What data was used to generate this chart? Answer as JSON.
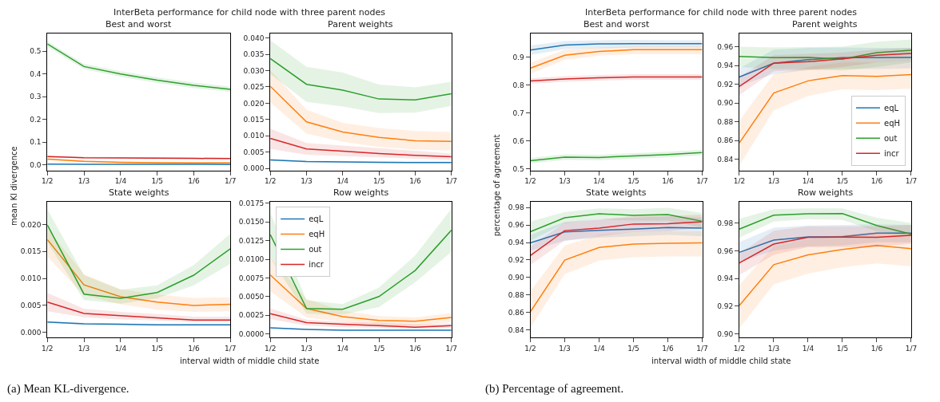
{
  "chart_data": [
    {
      "type": "line",
      "title": "Best and worst",
      "ylabel": "mean Kl divergence",
      "annotations": [
        "InterBeta performance for child node with three parent nodes"
      ],
      "categories": [
        "1/2",
        "1/3",
        "1/4",
        "1/5",
        "1/6",
        "1/7"
      ],
      "ylim": [
        -0.024,
        0.577
      ],
      "yticks": [
        {
          "value": 0,
          "label": "0.0"
        },
        0.1,
        0.2,
        0.3,
        0.4,
        0.5
      ],
      "series": [
        {
          "color": "#1f77b4",
          "values": [
            0.004,
            0.003,
            0.003,
            0.003,
            0.003,
            0.002
          ],
          "lower": [
            0.002,
            0.001,
            0.001,
            0.001,
            0.001,
            0.0
          ],
          "upper": [
            0.006,
            0.005,
            0.005,
            0.005,
            0.005,
            0.004
          ]
        },
        {
          "color": "#ff7f0e",
          "values": [
            0.026,
            0.016,
            0.012,
            0.01,
            0.009,
            0.009
          ],
          "lower": [
            0.022,
            0.012,
            0.008,
            0.006,
            0.005,
            0.005
          ],
          "upper": [
            0.03,
            0.02,
            0.016,
            0.014,
            0.013,
            0.013
          ]
        },
        {
          "color": "#2ca02c",
          "values": [
            0.532,
            0.433,
            0.4,
            0.373,
            0.35,
            0.333
          ],
          "lower": [
            0.52,
            0.421,
            0.388,
            0.361,
            0.338,
            0.321
          ],
          "upper": [
            0.544,
            0.445,
            0.412,
            0.385,
            0.362,
            0.345
          ]
        },
        {
          "color": "#d62728",
          "values": [
            0.037,
            0.032,
            0.031,
            0.03,
            0.029,
            0.028
          ],
          "lower": [
            0.033,
            0.028,
            0.027,
            0.026,
            0.025,
            0.024
          ],
          "upper": [
            0.041,
            0.036,
            0.035,
            0.034,
            0.033,
            0.032
          ]
        }
      ]
    },
    {
      "type": "line",
      "title": "Parent weights",
      "categories": [
        "1/2",
        "1/3",
        "1/4",
        "1/5",
        "1/6",
        "1/7"
      ],
      "ylim": [
        -0.0006,
        0.0413
      ],
      "yticks": [
        {
          "value": 0,
          "label": "0.000"
        },
        0.005,
        {
          "value": 0.01,
          "label": "0.010"
        },
        0.015,
        {
          "value": 0.02,
          "label": "0.020"
        },
        0.025,
        {
          "value": 0.03,
          "label": "0.030"
        },
        0.035,
        {
          "value": 0.04,
          "label": "0.040"
        }
      ],
      "series": [
        {
          "color": "#1f77b4",
          "values": [
            0.0026,
            0.0021,
            0.002,
            0.0019,
            0.0018,
            0.0018
          ],
          "lower": [
            0.0023,
            0.0018,
            0.0017,
            0.0016,
            0.0015,
            0.0015
          ],
          "upper": [
            0.0029,
            0.0024,
            0.0023,
            0.0022,
            0.0021,
            0.0021
          ]
        },
        {
          "color": "#ff7f0e",
          "values": [
            0.0252,
            0.0143,
            0.0112,
            0.0095,
            0.0085,
            0.0083
          ],
          "lower": [
            0.0202,
            0.0107,
            0.0082,
            0.0066,
            0.0058,
            0.0055
          ],
          "upper": [
            0.0302,
            0.018,
            0.014,
            0.0124,
            0.0115,
            0.0112
          ]
        },
        {
          "color": "#2ca02c",
          "values": [
            0.0337,
            0.0258,
            0.024,
            0.0213,
            0.021,
            0.0229
          ],
          "lower": [
            0.029,
            0.0204,
            0.019,
            0.017,
            0.0171,
            0.0192
          ],
          "upper": [
            0.0393,
            0.0312,
            0.0294,
            0.0257,
            0.0249,
            0.0266
          ]
        },
        {
          "color": "#d62728",
          "values": [
            0.0092,
            0.006,
            0.0053,
            0.0046,
            0.004,
            0.0036
          ],
          "lower": [
            0.006,
            0.0042,
            0.0038,
            0.0034,
            0.003,
            0.0026
          ],
          "upper": [
            0.0122,
            0.0078,
            0.007,
            0.0062,
            0.0054,
            0.0046
          ]
        }
      ]
    },
    {
      "type": "line",
      "title": "State weights",
      "xlabel": "interval width of middle child state",
      "annotations": [
        "(a) Mean KL-divergence."
      ],
      "categories": [
        "1/2",
        "1/3",
        "1/4",
        "1/5",
        "1/6",
        "1/7"
      ],
      "ylim": [
        -0.0009,
        0.0242
      ],
      "yticks": [
        {
          "value": 0,
          "label": "0.000"
        },
        0.005,
        {
          "value": 0.01,
          "label": "0.010"
        },
        0.015,
        {
          "value": 0.02,
          "label": "0.020"
        }
      ],
      "series": [
        {
          "color": "#1f77b4",
          "values": [
            0.0019,
            0.0016,
            0.0015,
            0.0014,
            0.0014,
            0.0014
          ],
          "lower": [
            0.0017,
            0.0014,
            0.0013,
            0.0012,
            0.0012,
            0.0012
          ],
          "upper": [
            0.0021,
            0.0018,
            0.0017,
            0.0016,
            0.0016,
            0.0016
          ]
        },
        {
          "color": "#ff7f0e",
          "values": [
            0.0172,
            0.0088,
            0.0066,
            0.0056,
            0.005,
            0.0052
          ],
          "lower": [
            0.014,
            0.0069,
            0.0052,
            0.0042,
            0.0038,
            0.0039
          ],
          "upper": [
            0.0192,
            0.0108,
            0.008,
            0.007,
            0.0064,
            0.0065
          ]
        },
        {
          "color": "#2ca02c",
          "values": [
            0.0199,
            0.0071,
            0.0063,
            0.0074,
            0.0106,
            0.0155
          ],
          "lower": [
            0.0167,
            0.006,
            0.0053,
            0.0063,
            0.0087,
            0.0127
          ],
          "upper": [
            0.0228,
            0.0106,
            0.0079,
            0.0087,
            0.0125,
            0.0183
          ]
        },
        {
          "color": "#d62728",
          "values": [
            0.0056,
            0.0035,
            0.0031,
            0.0027,
            0.0023,
            0.0023
          ],
          "lower": [
            0.0039,
            0.0028,
            0.0024,
            0.0022,
            0.0019,
            0.0019
          ],
          "upper": [
            0.0073,
            0.0044,
            0.0038,
            0.0034,
            0.0029,
            0.0029
          ]
        }
      ]
    },
    {
      "type": "line",
      "title": "Row weights",
      "legend": "top left",
      "categories": [
        "1/2",
        "1/3",
        "1/4",
        "1/5",
        "1/6",
        "1/7"
      ],
      "ylim": [
        -0.00045,
        0.0177
      ],
      "yticks": [
        {
          "value": 0,
          "label": "0.0000"
        },
        0.0025,
        {
          "value": 0.005,
          "label": "0.0050"
        },
        0.0075,
        {
          "value": 0.01,
          "label": "0.0100"
        },
        0.0125,
        {
          "value": 0.015,
          "label": "0.0150"
        },
        0.0175
      ],
      "series": [
        {
          "name": "eqL",
          "color": "#1f77b4",
          "values": [
            0.0008,
            0.0006,
            0.0005,
            0.0005,
            0.0005,
            0.0005
          ],
          "lower": [
            0.0007,
            0.0005,
            0.0004,
            0.0004,
            0.0004,
            0.0004
          ],
          "upper": [
            0.0009,
            0.0007,
            0.0006,
            0.0006,
            0.0006,
            0.0006
          ]
        },
        {
          "name": "eqH",
          "color": "#ff7f0e",
          "values": [
            0.0079,
            0.0034,
            0.0023,
            0.0018,
            0.0017,
            0.0022
          ],
          "lower": [
            0.0057,
            0.0022,
            0.0016,
            0.0012,
            0.0011,
            0.0016
          ],
          "upper": [
            0.0102,
            0.0047,
            0.0031,
            0.0024,
            0.0022,
            0.0028
          ]
        },
        {
          "name": "out",
          "color": "#2ca02c",
          "values": [
            0.0133,
            0.0034,
            0.0033,
            0.005,
            0.0085,
            0.0139
          ],
          "lower": [
            0.0102,
            0.0027,
            0.0026,
            0.0036,
            0.0069,
            0.011
          ],
          "upper": [
            0.0162,
            0.0045,
            0.004,
            0.0062,
            0.0105,
            0.0168
          ]
        },
        {
          "name": "incr",
          "color": "#d62728",
          "values": [
            0.0027,
            0.0015,
            0.0013,
            0.0011,
            0.0009,
            0.0011
          ],
          "lower": [
            0.002,
            0.0011,
            0.0009,
            0.0008,
            0.0007,
            0.0008
          ],
          "upper": [
            0.0034,
            0.0019,
            0.0016,
            0.0015,
            0.0013,
            0.0014
          ]
        }
      ]
    },
    {
      "type": "line",
      "title": "Best and worst",
      "ylabel": "percentage of agreement",
      "annotations": [
        "InterBeta performance for child node with three parent nodes"
      ],
      "categories": [
        "1/2",
        "1/3",
        "1/4",
        "1/5",
        "1/6",
        "1/7"
      ],
      "ylim": [
        0.494,
        0.983
      ],
      "yticks": [
        0.5,
        0.6,
        0.7,
        0.8,
        0.9
      ],
      "series": [
        {
          "color": "#1f77b4",
          "values": [
            0.925,
            0.9425,
            0.9466,
            0.9477,
            0.9477,
            0.9477
          ],
          "lower": [
            0.907,
            0.928,
            0.931,
            0.934,
            0.934,
            0.934
          ],
          "upper": [
            0.9415,
            0.957,
            0.96,
            0.961,
            0.96,
            0.96
          ]
        },
        {
          "color": "#ff7f0e",
          "values": [
            0.8596,
            0.9062,
            0.9197,
            0.9259,
            0.9259,
            0.9259
          ],
          "lower": [
            0.84,
            0.89,
            0.905,
            0.91,
            0.91,
            0.91
          ],
          "upper": [
            0.879,
            0.926,
            0.934,
            0.938,
            0.938,
            0.938
          ]
        },
        {
          "color": "#2ca02c",
          "values": [
            0.529,
            0.5415,
            0.5404,
            0.5456,
            0.5508,
            0.558
          ],
          "lower": [
            0.519,
            0.5315,
            0.5304,
            0.5356,
            0.5408,
            0.548
          ],
          "upper": [
            0.539,
            0.5515,
            0.5504,
            0.5556,
            0.5608,
            0.568
          ]
        },
        {
          "color": "#d62728",
          "values": [
            0.814,
            0.8212,
            0.8254,
            0.8285,
            0.8285,
            0.8285
          ],
          "lower": [
            0.804,
            0.8112,
            0.8154,
            0.8185,
            0.8185,
            0.8185
          ],
          "upper": [
            0.824,
            0.8312,
            0.8354,
            0.8385,
            0.8385,
            0.8385
          ]
        }
      ]
    },
    {
      "type": "line",
      "title": "Parent weights",
      "legend": "bottom right",
      "categories": [
        "1/2",
        "1/3",
        "1/4",
        "1/5",
        "1/6",
        "1/7"
      ],
      "ylim": [
        0.828,
        0.974
      ],
      "yticks": [
        0.84,
        0.86,
        0.88,
        {
          "value": 0.9,
          "label": "0.90"
        },
        0.92,
        0.94,
        0.96
      ],
      "series": [
        {
          "name": "eqL",
          "color": "#1f77b4",
          "values": [
            0.9278,
            0.9426,
            0.9464,
            0.9485,
            0.9485,
            0.9488
          ],
          "lower": [
            0.9185,
            0.931,
            0.935,
            0.9364,
            0.9364,
            0.937
          ],
          "upper": [
            0.937,
            0.957,
            0.959,
            0.9594,
            0.959,
            0.959
          ]
        },
        {
          "name": "eqH",
          "color": "#ff7f0e",
          "values": [
            0.8574,
            0.9107,
            0.9237,
            0.9293,
            0.9284,
            0.9305
          ],
          "lower": [
            0.8332,
            0.8921,
            0.9076,
            0.9147,
            0.9138,
            0.9153
          ],
          "upper": [
            0.8812,
            0.931,
            0.9386,
            0.9433,
            0.9433,
            0.9448
          ]
        },
        {
          "name": "out",
          "color": "#2ca02c",
          "values": [
            0.9498,
            0.9485,
            0.9488,
            0.947,
            0.9538,
            0.9563
          ],
          "lower": [
            0.9386,
            0.9364,
            0.9364,
            0.9346,
            0.9386,
            0.9433
          ],
          "upper": [
            0.9603,
            0.9594,
            0.9597,
            0.9603,
            0.9656,
            0.968
          ]
        },
        {
          "name": "incr",
          "color": "#d62728",
          "values": [
            0.9178,
            0.9426,
            0.9442,
            0.9473,
            0.951,
            0.9529
          ],
          "lower": [
            0.9085,
            0.934,
            0.9355,
            0.9386,
            0.9433,
            0.9448
          ],
          "upper": [
            0.9278,
            0.951,
            0.9525,
            0.9541,
            0.9572,
            0.959
          ]
        }
      ]
    },
    {
      "type": "line",
      "title": "State weights",
      "xlabel": "interval width of middle child state",
      "annotations": [
        "(b) Percentage of agreement."
      ],
      "categories": [
        "1/2",
        "1/3",
        "1/4",
        "1/5",
        "1/6",
        "1/7"
      ],
      "ylim": [
        0.8318,
        0.9865
      ],
      "yticks": [
        0.84,
        0.86,
        0.88,
        {
          "value": 0.9,
          "label": "0.90"
        },
        0.92,
        0.94,
        0.96,
        0.98
      ],
      "series": [
        {
          "color": "#1f77b4",
          "values": [
            0.9395,
            0.952,
            0.9539,
            0.9552,
            0.9572,
            0.9565
          ],
          "lower": [
            0.9307,
            0.942,
            0.9454,
            0.947,
            0.9487,
            0.947
          ],
          "upper": [
            0.9487,
            0.9634,
            0.9667,
            0.9683,
            0.97,
            0.9683
          ]
        },
        {
          "color": "#ff7f0e",
          "values": [
            0.8609,
            0.9199,
            0.9343,
            0.9382,
            0.9392,
            0.9395
          ],
          "lower": [
            0.8426,
            0.9039,
            0.9193,
            0.9232,
            0.9242,
            0.9242
          ],
          "upper": [
            0.8844,
            0.9366,
            0.9487,
            0.952,
            0.9529,
            0.9529
          ]
        },
        {
          "color": "#2ca02c",
          "values": [
            0.9523,
            0.9683,
            0.9729,
            0.9709,
            0.9719,
            0.9643
          ],
          "lower": [
            0.942,
            0.9618,
            0.9667,
            0.965,
            0.965,
            0.957
          ],
          "upper": [
            0.964,
            0.9749,
            0.979,
            0.978,
            0.9797,
            0.9738
          ]
        },
        {
          "color": "#d62728",
          "values": [
            0.9251,
            0.9536,
            0.9565,
            0.9611,
            0.9614,
            0.9637
          ],
          "lower": [
            0.9144,
            0.942,
            0.947,
            0.952,
            0.9527,
            0.957
          ],
          "upper": [
            0.9356,
            0.9627,
            0.966,
            0.97,
            0.9706,
            0.9716
          ]
        }
      ]
    },
    {
      "type": "line",
      "title": "Row weights",
      "categories": [
        "1/2",
        "1/3",
        "1/4",
        "1/5",
        "1/6",
        "1/7"
      ],
      "ylim": [
        0.8975,
        0.9955
      ],
      "yticks": [
        {
          "value": 0.9,
          "label": "0.90"
        },
        0.92,
        0.94,
        0.96,
        0.98
      ],
      "series": [
        {
          "color": "#1f77b4",
          "values": [
            0.9589,
            0.9678,
            0.9701,
            0.9703,
            0.9728,
            0.9728
          ],
          "lower": [
            0.9519,
            0.9602,
            0.9633,
            0.9639,
            0.9664,
            0.966
          ],
          "upper": [
            0.9664,
            0.9767,
            0.9783,
            0.9788,
            0.9792,
            0.9788
          ]
        },
        {
          "color": "#ff7f0e",
          "values": [
            0.9205,
            0.95,
            0.9571,
            0.961,
            0.9639,
            0.9616
          ],
          "lower": [
            0.9039,
            0.9358,
            0.9436,
            0.9482,
            0.9509,
            0.9488
          ],
          "upper": [
            0.9354,
            0.9633,
            0.9685,
            0.9716,
            0.9736,
            0.9716
          ]
        },
        {
          "color": "#2ca02c",
          "values": [
            0.9757,
            0.9858,
            0.9868,
            0.987,
            0.9783,
            0.9721
          ],
          "lower": [
            0.9695,
            0.9812,
            0.9829,
            0.9823,
            0.9742,
            0.9705
          ],
          "upper": [
            0.9833,
            0.9901,
            0.9907,
            0.9907,
            0.9839,
            0.9802
          ]
        },
        {
          "color": "#d62728",
          "values": [
            0.9513,
            0.9649,
            0.9698,
            0.97,
            0.9698,
            0.9713
          ],
          "lower": [
            0.9426,
            0.9571,
            0.9627,
            0.9627,
            0.9627,
            0.9654
          ],
          "upper": [
            0.9581,
            0.9746,
            0.9777,
            0.9777,
            0.9777,
            0.9788
          ]
        }
      ]
    }
  ]
}
